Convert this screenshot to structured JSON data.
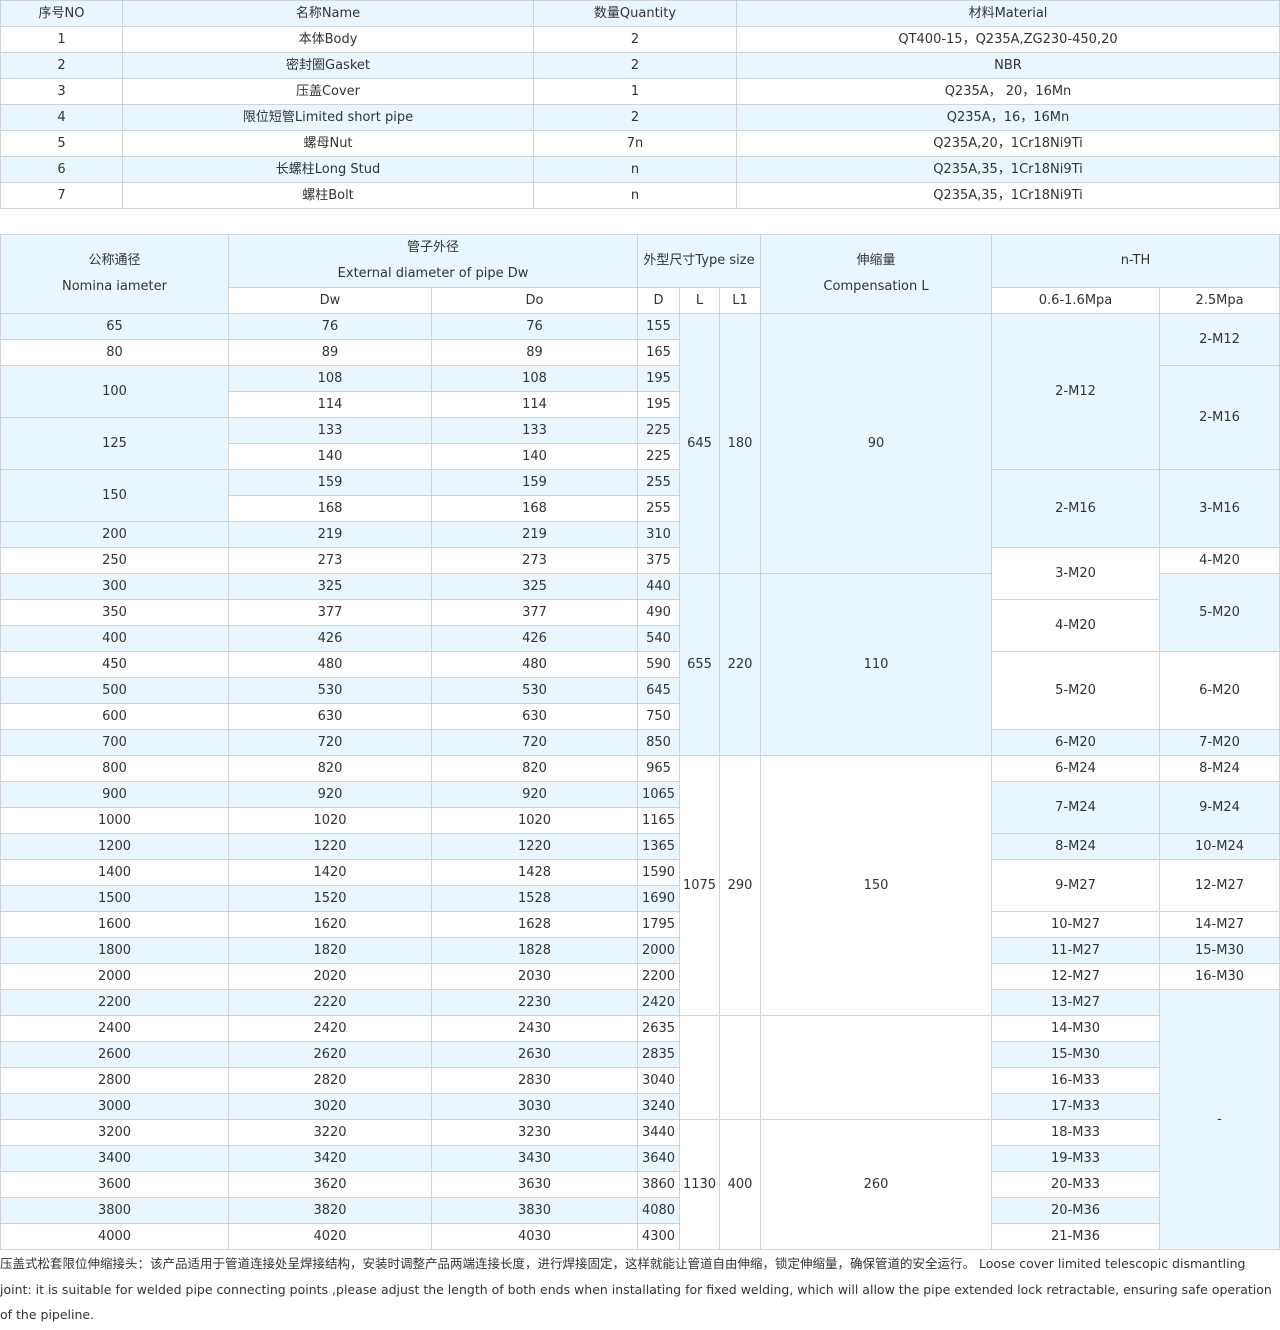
{
  "parts_table": {
    "headers": [
      "序号NO",
      "名称Name",
      "数量Quantity",
      "材料Material"
    ],
    "rows": [
      [
        "1",
        "本体Body",
        "2",
        "QT400-15，Q235A,ZG230-450,20"
      ],
      [
        "2",
        "密封圈Gasket",
        "2",
        "NBR"
      ],
      [
        "3",
        "压盖Cover",
        "1",
        "Q235A， 20，16Mn"
      ],
      [
        "4",
        "限位短管Limited short pipe",
        "2",
        "Q235A，16，16Mn"
      ],
      [
        "5",
        "螺母Nut",
        "7n",
        "Q235A,20，1Cr18Ni9Ti"
      ],
      [
        "6",
        "长螺柱Long Stud",
        "n",
        "Q235A,35，1Cr18Ni9Ti"
      ],
      [
        "7",
        "螺柱Bolt",
        "n",
        "Q235A,35，1Cr18Ni9Ti"
      ]
    ]
  },
  "size_table": {
    "headers": {
      "nominal": [
        "公称通径",
        "Nomina iameter"
      ],
      "pipe_od": [
        "管子外径",
        "External diameter of pipe Dw"
      ],
      "type_size": "外型尺寸Type size",
      "compensation": [
        "伸缩量",
        "Compensation L"
      ],
      "nth": "n-TH",
      "dw": "Dw",
      "do": "Do",
      "d": "D",
      "l": "L",
      "l1": "L1",
      "low_pressure": "0.6-1.6Mpa",
      "high_pressure": "2.5Mpa"
    },
    "dn_spans": [
      [
        "65",
        1
      ],
      [
        "80",
        1
      ],
      [
        "100",
        2
      ],
      [
        "125",
        2
      ],
      [
        "150",
        2
      ],
      [
        "200",
        1
      ],
      [
        "250",
        1
      ],
      [
        "300",
        1
      ],
      [
        "350",
        1
      ],
      [
        "400",
        1
      ],
      [
        "450",
        1
      ],
      [
        "500",
        1
      ],
      [
        "600",
        1
      ],
      [
        "700",
        1
      ],
      [
        "800",
        1
      ],
      [
        "900",
        1
      ],
      [
        "1000",
        1
      ],
      [
        "1200",
        1
      ],
      [
        "1400",
        1
      ],
      [
        "1500",
        1
      ],
      [
        "1600",
        1
      ],
      [
        "1800",
        1
      ],
      [
        "2000",
        1
      ],
      [
        "2200",
        1
      ],
      [
        "2400",
        1
      ],
      [
        "2600",
        1
      ],
      [
        "2800",
        1
      ],
      [
        "3000",
        1
      ],
      [
        "3200",
        1
      ],
      [
        "3400",
        1
      ],
      [
        "3600",
        1
      ],
      [
        "3800",
        1
      ],
      [
        "4000",
        1
      ]
    ],
    "dw": [
      "76",
      "89",
      "108",
      "114",
      "133",
      "140",
      "159",
      "168",
      "219",
      "273",
      "325",
      "377",
      "426",
      "480",
      "530",
      "630",
      "720",
      "820",
      "920",
      "1020",
      "1220",
      "1420",
      "1520",
      "1620",
      "1820",
      "2020",
      "2220",
      "2420",
      "2620",
      "2820",
      "3020",
      "3220",
      "3420",
      "3620",
      "3820",
      "4020"
    ],
    "do": [
      "76",
      "89",
      "108",
      "114",
      "133",
      "140",
      "159",
      "168",
      "219",
      "273",
      "325",
      "377",
      "426",
      "480",
      "530",
      "630",
      "720",
      "820",
      "920",
      "1020",
      "1220",
      "1428",
      "1528",
      "1628",
      "1828",
      "2030",
      "2230",
      "2430",
      "2630",
      "2830",
      "3030",
      "3230",
      "3430",
      "3630",
      "3830",
      "4030"
    ],
    "d": [
      "155",
      "165",
      "195",
      "195",
      "225",
      "225",
      "255",
      "255",
      "310",
      "375",
      "440",
      "490",
      "540",
      "590",
      "645",
      "750",
      "850",
      "965",
      "1065",
      "1165",
      "1365",
      "1590",
      "1690",
      "1795",
      "2000",
      "2200",
      "2420",
      "2635",
      "2835",
      "3040",
      "3240",
      "3440",
      "3640",
      "3860",
      "4080",
      "4300"
    ],
    "length_groups": [
      {
        "l": "645",
        "l1": "180",
        "comp": "90",
        "rows": 10
      },
      {
        "l": "655",
        "l1": "220",
        "comp": "110",
        "rows": 7
      },
      {
        "l": "1075",
        "l1": "290",
        "comp": "150",
        "rows": 10
      },
      {
        "l": "",
        "l1": "",
        "comp": "",
        "rows": 4
      },
      {
        "l": "1130",
        "l1": "400",
        "comp": "260",
        "rows": 5
      }
    ],
    "nth_low_spans": [
      [
        "2-M12",
        6
      ],
      [
        "2-M16",
        3
      ],
      [
        "3-M20",
        2
      ],
      [
        "4-M20",
        2
      ],
      [
        "5-M20",
        3
      ],
      [
        "6-M20",
        1
      ],
      [
        "6-M24",
        1
      ],
      [
        "7-M24",
        2
      ],
      [
        "8-M24",
        1
      ],
      [
        "9-M27",
        2
      ],
      [
        "10-M27",
        1
      ],
      [
        "11-M27",
        1
      ],
      [
        "12-M27",
        1
      ],
      [
        "13-M27",
        1
      ],
      [
        "14-M30",
        1
      ],
      [
        "15-M30",
        1
      ],
      [
        "16-M33",
        1
      ],
      [
        "17-M33",
        1
      ],
      [
        "18-M33",
        1
      ],
      [
        "19-M33",
        1
      ],
      [
        "20-M33",
        1
      ],
      [
        "20-M36",
        1
      ],
      [
        "21-M36",
        1
      ]
    ],
    "nth_high_spans": [
      [
        "2-M12",
        2
      ],
      [
        "2-M16",
        4
      ],
      [
        "3-M16",
        3
      ],
      [
        "4-M20",
        1
      ],
      [
        "5-M20",
        3
      ],
      [
        "6-M20",
        3
      ],
      [
        "7-M20",
        1
      ],
      [
        "8-M24",
        1
      ],
      [
        "9-M24",
        2
      ],
      [
        "10-M24",
        1
      ],
      [
        "12-M27",
        2
      ],
      [
        "14-M27",
        1
      ],
      [
        "15-M30",
        1
      ],
      [
        "16-M30",
        1
      ],
      [
        "-",
        10
      ]
    ]
  },
  "description": "压盖式松套限位伸缩接头：该产品适用于管道连接处呈焊接结构，安装时调整产品两端连接长度，进行焊接固定，这样就能让管道自由伸缩，锁定伸缩量，确保管道的安全运行。 Loose cover limited telescopic dismantling joint: it is suitable for welded pipe connecting points ,please adjust the length of both ends when installating for fixed welding, which will allow the pipe extended lock retractable, ensuring safe operation of the pipeline.",
  "colors": {
    "stripe": "#eaf6fd",
    "border": "#d3d3d3",
    "text": "#333333"
  }
}
